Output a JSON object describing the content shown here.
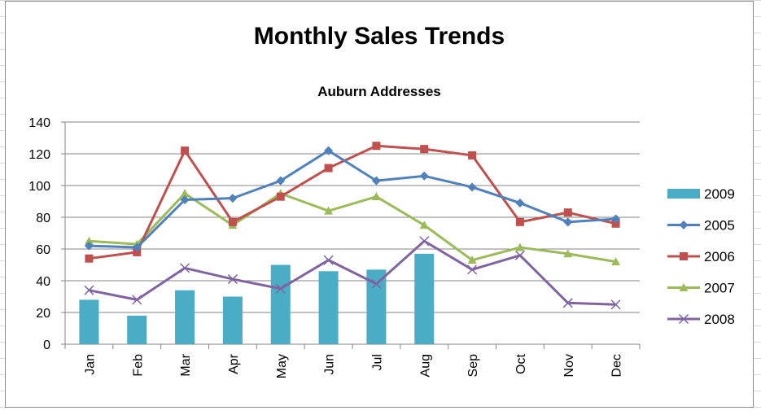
{
  "chart_data": {
    "type": "bar+line",
    "title": "Monthly Sales Trends",
    "subtitle": "Auburn Addresses",
    "categories": [
      "Jan",
      "Feb",
      "Mar",
      "Apr",
      "May",
      "Jun",
      "Jul",
      "Aug",
      "Sep",
      "Oct",
      "Nov",
      "Dec"
    ],
    "ylim": [
      0,
      140
    ],
    "yticks": [
      0,
      20,
      40,
      60,
      80,
      100,
      120,
      140
    ],
    "grid": true,
    "legend_position": "right",
    "bar_series": [
      {
        "name": "2009",
        "color": "#4bacc6",
        "values": [
          28,
          18,
          34,
          30,
          50,
          46,
          47,
          57,
          null,
          null,
          null,
          null
        ]
      }
    ],
    "line_series": [
      {
        "name": "2005",
        "color": "#4f81bd",
        "marker": "diamond",
        "values": [
          62,
          61,
          91,
          92,
          103,
          122,
          103,
          106,
          99,
          89,
          77,
          79
        ]
      },
      {
        "name": "2006",
        "color": "#c0504d",
        "marker": "square",
        "values": [
          54,
          58,
          122,
          77,
          93,
          111,
          125,
          123,
          119,
          77,
          83,
          76
        ]
      },
      {
        "name": "2007",
        "color": "#9bbb59",
        "marker": "triangle",
        "values": [
          65,
          63,
          95,
          75,
          95,
          84,
          93,
          75,
          53,
          61,
          57,
          52
        ]
      },
      {
        "name": "2008",
        "color": "#8064a2",
        "marker": "x",
        "values": [
          34,
          28,
          48,
          41,
          35,
          53,
          38,
          65,
          47,
          56,
          26,
          25
        ]
      }
    ]
  }
}
